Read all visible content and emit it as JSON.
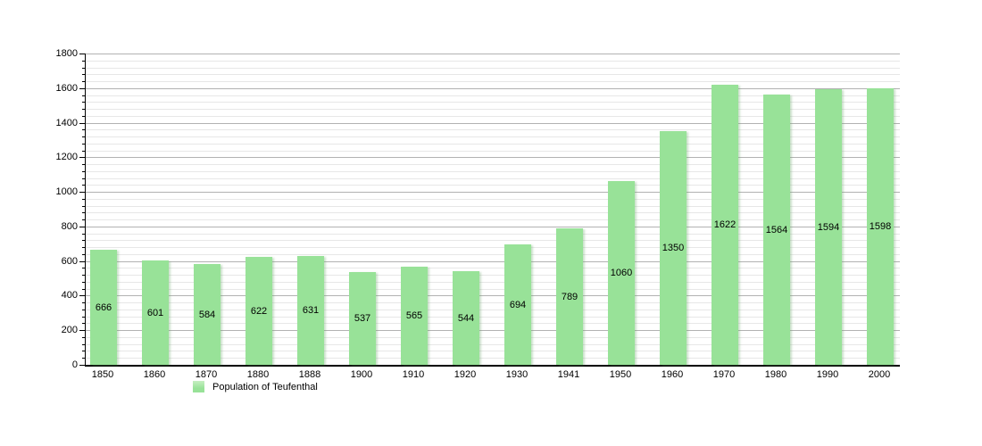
{
  "chart_data": {
    "type": "bar",
    "title": "",
    "xlabel": "",
    "ylabel": "",
    "categories": [
      "1850",
      "1860",
      "1870",
      "1880",
      "1888",
      "1900",
      "1910",
      "1920",
      "1930",
      "1941",
      "1950",
      "1960",
      "1970",
      "1980",
      "1990",
      "2000"
    ],
    "values": [
      666,
      601,
      584,
      622,
      631,
      537,
      565,
      544,
      694,
      789,
      1060,
      1350,
      1622,
      1564,
      1594,
      1598
    ],
    "series_name": "Population of Teufenthal",
    "ylim": [
      0,
      1800
    ],
    "y_major_step": 200,
    "y_minor_step": 40,
    "grid": "on",
    "bar_value_labels": "centered-inside",
    "legend": {
      "label": "Population of Teufenthal",
      "position": "bottom-left"
    }
  },
  "colors": {
    "bar_fill": "#98e298",
    "bar_swatch_top": "#c6efc2",
    "major_grid": "#b2b2b2",
    "minor_grid": "#e7e7e7",
    "axis": "#000000",
    "text": "#000000",
    "background": "#ffffff"
  }
}
